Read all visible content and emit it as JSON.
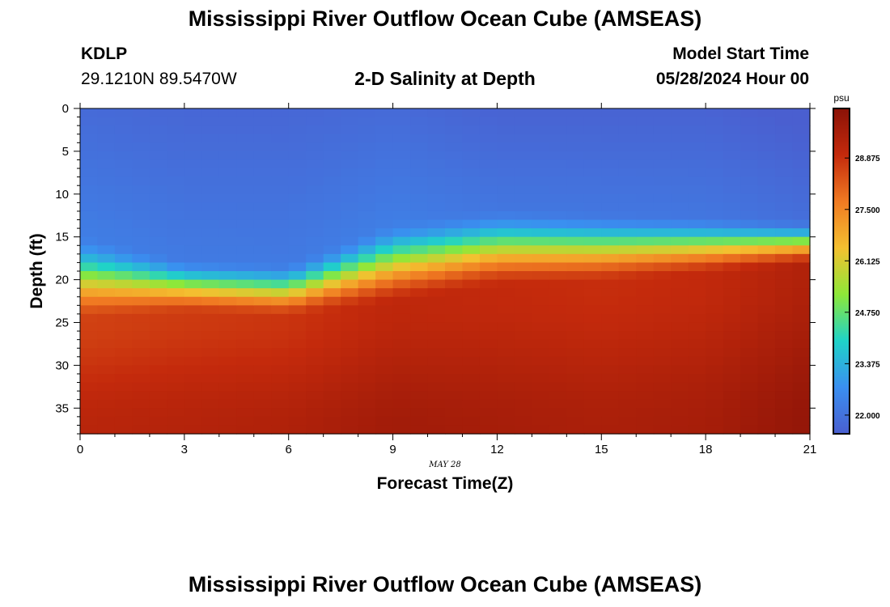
{
  "header": {
    "main_title": "Mississippi River Outflow Ocean Cube (AMSEAS)",
    "station_id": "KDLP",
    "station_coords": "29.1210N  89.5470W",
    "plot_title": "2-D Salinity at Depth",
    "model_start_label": "Model Start Time",
    "model_start_value": "05/28/2024 Hour 00",
    "footer_title": "Mississippi River Outflow Ocean Cube (AMSEAS)"
  },
  "chart_data": {
    "type": "heatmap",
    "title": "2-D Salinity at Depth",
    "xlabel": "Forecast Time(Z)",
    "ylabel": "Depth (ft)",
    "date_label": "MAY 28",
    "x_ticks": [
      0,
      3,
      6,
      9,
      12,
      15,
      18,
      21
    ],
    "y_ticks": [
      0,
      5,
      10,
      15,
      20,
      25,
      30,
      35
    ],
    "xlim": [
      0,
      21
    ],
    "ylim": [
      0,
      38
    ],
    "y_inverted": true,
    "grid": false,
    "colorbar": {
      "unit": "psu",
      "ticks": [
        "22.000",
        "23.375",
        "24.750",
        "26.125",
        "27.500",
        "28.875"
      ],
      "tick_values": [
        22.0,
        23.375,
        24.75,
        26.125,
        27.5,
        28.875
      ],
      "range": [
        21.5,
        30.2
      ],
      "colors": [
        "#4a5fd0",
        "#3a8ff0",
        "#1fd3c8",
        "#8ee838",
        "#f4c030",
        "#f07a22",
        "#c42a0c",
        "#8a1207"
      ]
    },
    "profiles": [
      {
        "time": 0,
        "surface": 21.8,
        "halocline_top": 14.5,
        "halocline_bottom": 25.0,
        "bottom": 29.2
      },
      {
        "time": 3,
        "surface": 21.7,
        "halocline_top": 17.5,
        "halocline_bottom": 24.0,
        "bottom": 29.3
      },
      {
        "time": 6,
        "surface": 21.7,
        "halocline_top": 18.0,
        "halocline_bottom": 24.5,
        "bottom": 29.4
      },
      {
        "time": 9,
        "surface": 21.8,
        "halocline_top": 13.0,
        "halocline_bottom": 23.0,
        "bottom": 29.7
      },
      {
        "time": 12,
        "surface": 21.6,
        "halocline_top": 11.5,
        "halocline_bottom": 21.0,
        "bottom": 29.6
      },
      {
        "time": 15,
        "surface": 21.6,
        "halocline_top": 12.0,
        "halocline_bottom": 20.5,
        "bottom": 29.5
      },
      {
        "time": 18,
        "surface": 21.6,
        "halocline_top": 12.5,
        "halocline_bottom": 19.5,
        "bottom": 29.6
      },
      {
        "time": 21,
        "surface": 21.4,
        "halocline_top": 13.0,
        "halocline_bottom": 18.5,
        "bottom": 30.0
      }
    ]
  }
}
